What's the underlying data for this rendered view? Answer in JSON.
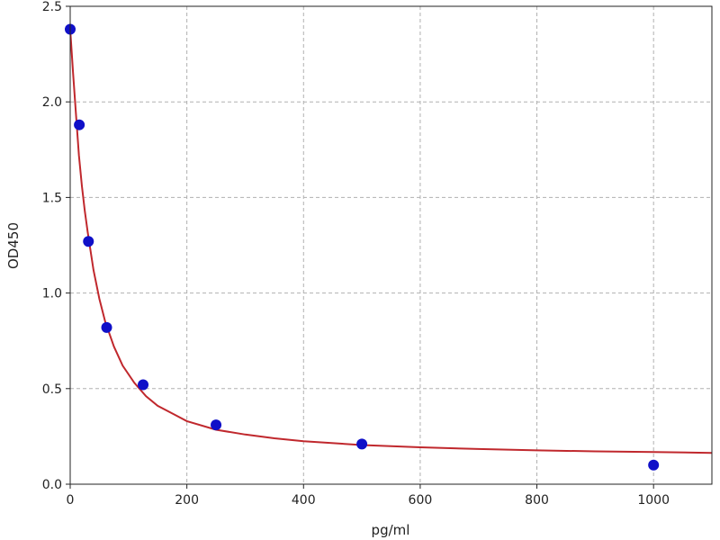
{
  "chart_data": {
    "type": "scatter",
    "title": "",
    "xlabel": "pg/ml",
    "ylabel": "OD450",
    "xlim": [
      0,
      1100
    ],
    "ylim": [
      0,
      2.5
    ],
    "grid": true,
    "x_ticks": [
      0,
      200,
      400,
      600,
      800,
      1000
    ],
    "y_ticks": [
      0.0,
      0.5,
      1.0,
      1.5,
      2.0,
      2.5
    ],
    "x_tick_labels": [
      "0",
      "200",
      "400",
      "600",
      "800",
      "1000"
    ],
    "y_tick_labels": [
      "0.0",
      "0.5",
      "1.0",
      "1.5",
      "2.0",
      "2.5"
    ],
    "series": [
      {
        "kind": "points",
        "color": "#1010c8",
        "x": [
          0,
          15.6,
          31.25,
          62.5,
          125,
          250,
          500,
          1000
        ],
        "y": [
          2.38,
          1.88,
          1.27,
          0.82,
          0.52,
          0.31,
          0.21,
          0.1
        ]
      },
      {
        "kind": "fit_curve",
        "color": "#c0282d",
        "x": [
          0,
          5,
          10,
          15,
          20,
          25,
          30,
          40,
          50,
          60,
          75,
          90,
          110,
          130,
          150,
          175,
          200,
          250,
          300,
          350,
          400,
          500,
          600,
          700,
          800,
          900,
          1000,
          1100
        ],
        "y": [
          2.38,
          2.15,
          1.93,
          1.72,
          1.56,
          1.43,
          1.32,
          1.12,
          0.97,
          0.85,
          0.72,
          0.62,
          0.53,
          0.46,
          0.41,
          0.37,
          0.33,
          0.285,
          0.26,
          0.24,
          0.225,
          0.205,
          0.193,
          0.184,
          0.177,
          0.172,
          0.168,
          0.164
        ]
      }
    ]
  }
}
